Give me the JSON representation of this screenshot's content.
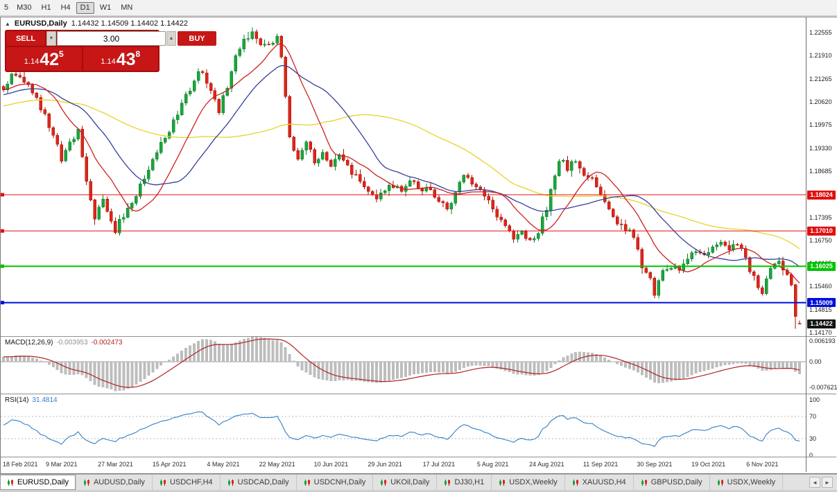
{
  "toolbar": {
    "timeframes": [
      {
        "label": "5",
        "active": false
      },
      {
        "label": "M30",
        "active": false
      },
      {
        "label": "H1",
        "active": false
      },
      {
        "label": "H4",
        "active": false
      },
      {
        "label": "D1",
        "active": true
      },
      {
        "label": "W1",
        "active": false
      },
      {
        "label": "MN",
        "active": false
      }
    ]
  },
  "chart_header": {
    "symbol": "EURUSD,Daily",
    "ohlc_text": "1.14432 1.14509 1.14402 1.14422"
  },
  "one_click": {
    "sell_label": "SELL",
    "buy_label": "BUY",
    "volume": "3.00",
    "bid": {
      "prefix": "1.14",
      "big": "42",
      "sup": "5"
    },
    "ask": {
      "prefix": "1.14",
      "big": "43",
      "sup": "8"
    }
  },
  "icons": {
    "collapse": "▲",
    "volume_down": "▼",
    "volume_up": "▲",
    "tabs_left": "◄",
    "tabs_right": "►"
  },
  "price_axis": {
    "ticks": [
      "1.22555",
      "1.21910",
      "1.21265",
      "1.20620",
      "1.19975",
      "1.19330",
      "1.18685",
      "1.18040",
      "1.17395",
      "1.16750",
      "1.16105",
      "1.15460",
      "1.14815",
      "1.14170"
    ]
  },
  "current_price": {
    "label": "1.14422",
    "value": 1.14422,
    "color": "#151515"
  },
  "macd": {
    "label": "MACD(12,26,9)",
    "main_value": "-0.003953",
    "signal_value": "-0.002473",
    "axis": [
      {
        "value": 0.006193,
        "label": "0.006193"
      },
      {
        "value": 0,
        "label": "0.00"
      },
      {
        "value": -0.007621,
        "label": "-0.007621"
      }
    ]
  },
  "rsi": {
    "label": "RSI(14)",
    "value": "31.4814",
    "levels": [
      70,
      30
    ],
    "axis": [
      {
        "value": 100,
        "label": "100"
      },
      {
        "value": 70,
        "label": "70"
      },
      {
        "value": 30,
        "label": "30"
      },
      {
        "value": 0,
        "label": "0"
      }
    ]
  },
  "time_axis": {
    "labels": [
      "18 Feb 2021",
      "9 Mar 2021",
      "27 Mar 2021",
      "15 Apr 2021",
      "4 May 2021",
      "22 May 2021",
      "10 Jun 2021",
      "29 Jun 2021",
      "17 Jul 2021",
      "5 Aug 2021",
      "24 Aug 2021",
      "11 Sep 2021",
      "30 Sep 2021",
      "19 Oct 2021",
      "6 Nov 2021"
    ],
    "candle_indices": [
      1,
      14,
      27,
      40,
      53,
      66,
      79,
      92,
      105,
      118,
      131,
      144,
      157,
      170,
      183
    ]
  },
  "tabs": [
    {
      "label": "EURUSD,Daily",
      "active": true
    },
    {
      "label": "AUDUSD,Daily",
      "active": false
    },
    {
      "label": "USDCHF,H4",
      "active": false
    },
    {
      "label": "USDCAD,Daily",
      "active": false
    },
    {
      "label": "USDCNH,Daily",
      "active": false
    },
    {
      "label": "UKOil,Daily",
      "active": false
    },
    {
      "label": "DJ30,H1",
      "active": false
    },
    {
      "label": "USDX,Weekly",
      "active": false
    },
    {
      "label": "XAUUSD,H4",
      "active": false
    },
    {
      "label": "GBPUSD,Daily",
      "active": false
    },
    {
      "label": "USDX,Weekly",
      "active": false
    }
  ],
  "chart_data": {
    "type": "candlestick",
    "symbol": "EURUSD",
    "timeframe": "Daily",
    "title": "EURUSD,Daily 1.14432 1.14509 1.14402 1.14422",
    "visible_range": {
      "price_top": 1.22555,
      "price_bottom": 1.1417
    },
    "last_ohlc": {
      "o": 1.14432,
      "h": 1.14509,
      "l": 1.14402,
      "c": 1.14422
    },
    "prev_close": 1.1462,
    "prev_low": 1.1428,
    "candle_count": 193,
    "seed": 12,
    "pre_range": [
      1.1952,
      1.2105
    ],
    "horizontal_lines": [
      {
        "price": 1.18024,
        "label": "1.18024",
        "color": "#e01010",
        "width": 1
      },
      {
        "price": 1.1701,
        "label": "1.17010",
        "color": "#e01010",
        "width": 1
      },
      {
        "price": 1.16025,
        "label": "1.16025",
        "color": "#00c400",
        "width": 2
      },
      {
        "price": 1.15009,
        "label": "1.15009",
        "color": "#0010d8",
        "width": 2
      }
    ],
    "moving_averages": [
      {
        "period": 55,
        "color": "#e8d227"
      },
      {
        "period": 24,
        "color": "#32409b"
      },
      {
        "period": 12,
        "color": "#cc2020"
      }
    ],
    "colors": {
      "up_fill": "#1ba53e",
      "up_stroke": "#0b7c2a",
      "down_fill": "#de2619",
      "down_stroke": "#a31208",
      "macd_hist": "#bdbdbd",
      "macd_signal": "#b22222",
      "rsi_line": "#2f7ec7"
    },
    "indicators": {
      "macd_params": "12,26,9",
      "rsi_period": 14
    },
    "anchors": [
      [
        0,
        1.2105
      ],
      [
        3,
        1.2142
      ],
      [
        6,
        1.211
      ],
      [
        9,
        1.2048
      ],
      [
        12,
        1.196
      ],
      [
        14,
        1.1905
      ],
      [
        16,
        1.195
      ],
      [
        18,
        1.1978
      ],
      [
        20,
        1.185
      ],
      [
        22,
        1.1732
      ],
      [
        24,
        1.179
      ],
      [
        27,
        1.1706
      ],
      [
        29,
        1.1748
      ],
      [
        31,
        1.1782
      ],
      [
        34,
        1.1852
      ],
      [
        37,
        1.1922
      ],
      [
        40,
        1.1985
      ],
      [
        43,
        1.206
      ],
      [
        46,
        1.2122
      ],
      [
        48,
        1.215
      ],
      [
        50,
        1.209
      ],
      [
        52,
        1.2032
      ],
      [
        54,
        1.211
      ],
      [
        56,
        1.22
      ],
      [
        58,
        1.2238
      ],
      [
        60,
        1.2255
      ],
      [
        62,
        1.2215
      ],
      [
        64,
        1.2232
      ],
      [
        66,
        1.2242
      ],
      [
        67,
        1.219
      ],
      [
        68,
        1.208
      ],
      [
        69,
        1.1958
      ],
      [
        71,
        1.191
      ],
      [
        73,
        1.1952
      ],
      [
        75,
        1.19
      ],
      [
        77,
        1.1922
      ],
      [
        79,
        1.1878
      ],
      [
        81,
        1.1912
      ],
      [
        83,
        1.1882
      ],
      [
        85,
        1.185
      ],
      [
        87,
        1.182
      ],
      [
        90,
        1.18
      ],
      [
        93,
        1.1832
      ],
      [
        96,
        1.1812
      ],
      [
        99,
        1.1842
      ],
      [
        101,
        1.1806
      ],
      [
        103,
        1.1822
      ],
      [
        105,
        1.179
      ],
      [
        107,
        1.1762
      ],
      [
        109,
        1.1812
      ],
      [
        111,
        1.1856
      ],
      [
        113,
        1.1832
      ],
      [
        115,
        1.1808
      ],
      [
        117,
        1.1788
      ],
      [
        119,
        1.174
      ],
      [
        121,
        1.1712
      ],
      [
        123,
        1.1686
      ],
      [
        125,
        1.1706
      ],
      [
        127,
        1.1668
      ],
      [
        129,
        1.1702
      ],
      [
        131,
        1.1762
      ],
      [
        133,
        1.1852
      ],
      [
        134,
        1.1896
      ],
      [
        136,
        1.188
      ],
      [
        138,
        1.1896
      ],
      [
        140,
        1.1862
      ],
      [
        142,
        1.184
      ],
      [
        144,
        1.1806
      ],
      [
        146,
        1.1772
      ],
      [
        148,
        1.173
      ],
      [
        150,
        1.1712
      ],
      [
        152,
        1.1682
      ],
      [
        154,
        1.1602
      ],
      [
        156,
        1.1566
      ],
      [
        157,
        1.1532
      ],
      [
        159,
        1.1586
      ],
      [
        161,
        1.1606
      ],
      [
        163,
        1.1586
      ],
      [
        165,
        1.1626
      ],
      [
        167,
        1.1642
      ],
      [
        169,
        1.1632
      ],
      [
        171,
        1.1656
      ],
      [
        173,
        1.1672
      ],
      [
        175,
        1.1652
      ],
      [
        177,
        1.1666
      ],
      [
        179,
        1.162
      ],
      [
        181,
        1.1566
      ],
      [
        183,
        1.1526
      ],
      [
        185,
        1.1596
      ],
      [
        187,
        1.1606
      ],
      [
        189,
        1.1576
      ],
      [
        190,
        1.1552
      ],
      [
        191,
        1.1462
      ],
      [
        192,
        1.14422
      ]
    ]
  }
}
